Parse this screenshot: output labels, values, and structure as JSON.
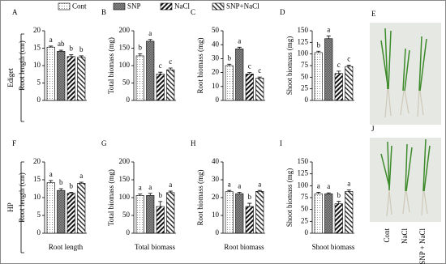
{
  "legend": [
    {
      "name": "Cont",
      "fill": "p-dots"
    },
    {
      "name": "SNP",
      "fill": "p-cross"
    },
    {
      "name": "NaCl",
      "fill": "p-stripe"
    },
    {
      "name": "SNP+NaCl",
      "fill": "p-stripe2"
    }
  ],
  "row_labels": [
    "Ediget",
    "HP"
  ],
  "chart_data": [
    {
      "type": "bar",
      "panel": "A",
      "ylabel": "Root length (cm)",
      "values": [
        15.3,
        14.1,
        12.6,
        12.4
      ],
      "errors": [
        0.3,
        0.3,
        0.5,
        0.4
      ],
      "annotations": [
        "a",
        "ab",
        "b",
        "b"
      ],
      "ylim": [
        0,
        20
      ],
      "yticks": [
        0,
        5,
        10,
        15,
        20
      ]
    },
    {
      "type": "bar",
      "panel": "B",
      "ylabel": "Total biomass (mg)",
      "values": [
        128,
        170,
        76,
        88
      ],
      "errors": [
        6,
        5,
        5,
        5
      ],
      "annotations": [
        "b",
        "a",
        "c",
        "c"
      ],
      "ylim": [
        0,
        200
      ],
      "yticks": [
        0,
        50,
        100,
        150,
        200
      ]
    },
    {
      "type": "bar",
      "panel": "C",
      "ylabel": "Root biomass (mg)",
      "values": [
        25,
        37,
        19,
        16
      ],
      "errors": [
        1,
        1.2,
        1,
        0.8
      ],
      "annotations": [
        "b",
        "a",
        "c",
        "c"
      ],
      "ylim": [
        0,
        50
      ],
      "yticks": [
        0,
        10,
        20,
        30,
        40,
        50
      ]
    },
    {
      "type": "bar",
      "panel": "D",
      "ylabel": "Shoot biomass (mg)",
      "values": [
        103,
        133,
        58,
        73
      ],
      "errors": [
        3,
        6,
        5,
        3
      ],
      "annotations": [
        "b",
        "a",
        "c",
        "c"
      ],
      "ylim": [
        0,
        150
      ],
      "yticks": [
        0,
        25,
        50,
        75,
        100,
        125,
        150
      ]
    },
    {
      "type": "bar",
      "panel": "F",
      "ylabel": "Root length (cm)",
      "xlabel": "Root length",
      "values": [
        14.2,
        12.0,
        11.2,
        14.0
      ],
      "errors": [
        0.6,
        0.5,
        0.3,
        0.3
      ],
      "annotations": [
        "a",
        "b",
        "b",
        "a"
      ],
      "ylim": [
        0,
        20
      ],
      "yticks": [
        0,
        5,
        10,
        15,
        20
      ]
    },
    {
      "type": "bar",
      "panel": "G",
      "ylabel": "Total biomass (mg)",
      "xlabel": "Total biomass",
      "values": [
        106,
        106,
        75,
        114
      ],
      "errors": [
        4,
        6,
        14,
        4
      ],
      "annotations": [
        "a",
        "a",
        "b",
        "a"
      ],
      "ylim": [
        0,
        200
      ],
      "yticks": [
        0,
        50,
        100,
        150,
        200
      ]
    },
    {
      "type": "bar",
      "panel": "H",
      "ylabel": "Root biomass (mg)",
      "xlabel": "Root biomass",
      "values": [
        23.3,
        22.2,
        15,
        23.5
      ],
      "errors": [
        0.7,
        0.8,
        1.8,
        0.5
      ],
      "annotations": [
        "a",
        "a",
        "b",
        "a"
      ],
      "ylim": [
        0,
        40
      ],
      "yticks": [
        0,
        10,
        20,
        30,
        40
      ]
    },
    {
      "type": "bar",
      "panel": "I",
      "ylabel": "Shoot biomass (mg)",
      "xlabel": "Shoot biomass",
      "values": [
        83,
        83,
        62,
        88
      ],
      "errors": [
        3,
        2,
        5,
        3
      ],
      "annotations": [
        "a",
        "a",
        "b",
        "a"
      ],
      "ylim": [
        0,
        150
      ],
      "yticks": [
        0,
        25,
        50,
        75,
        100,
        125,
        150
      ]
    }
  ],
  "photos": [
    {
      "panel": "E",
      "labels": []
    },
    {
      "panel": "J",
      "labels": [
        "Cont",
        "NaCl",
        "SNP + NaCl"
      ]
    }
  ]
}
